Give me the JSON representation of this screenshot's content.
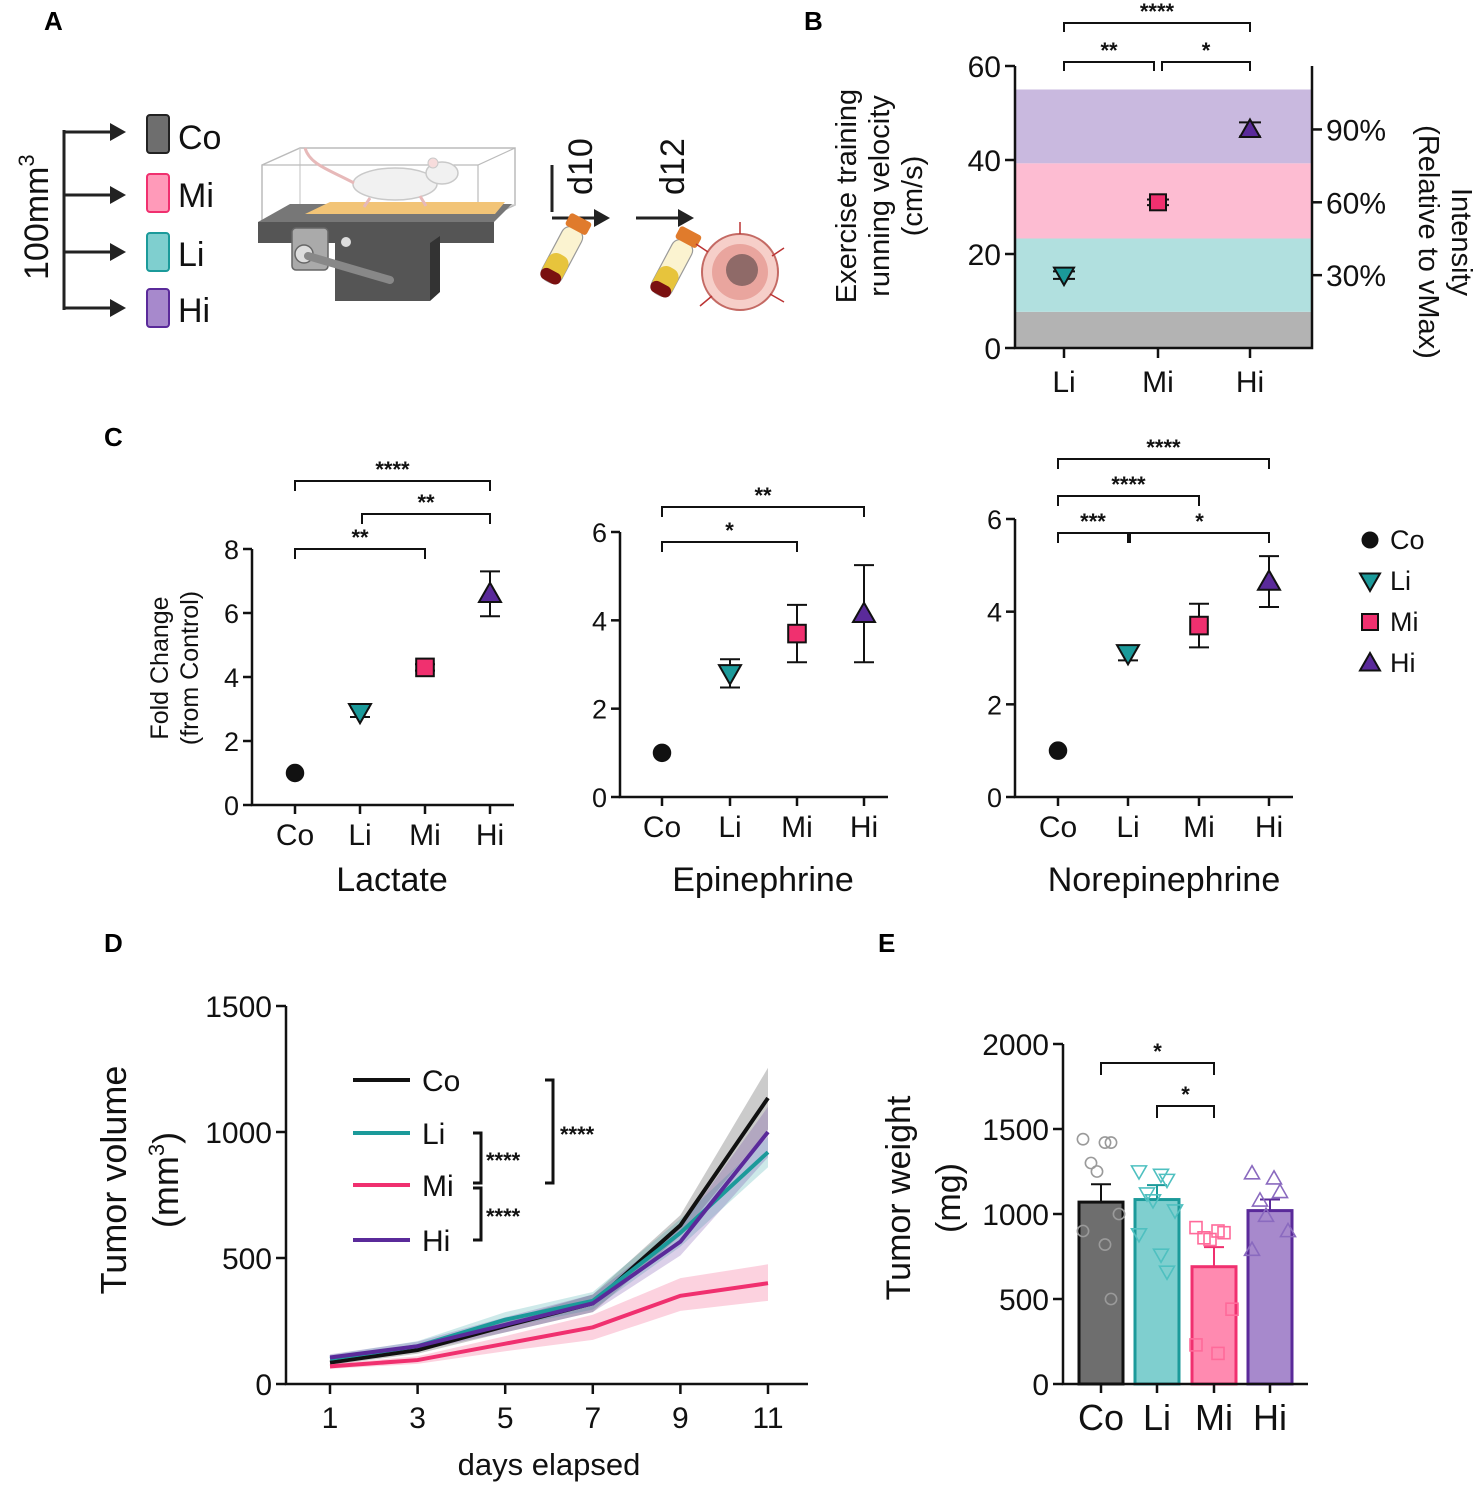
{
  "panels": {
    "A": "A",
    "B": "B",
    "C": "C",
    "D": "D",
    "E": "E"
  },
  "colors": {
    "Co": "#111111",
    "Li": "#1b9a9a",
    "Mi": "#f0306f",
    "Hi": "#5a2a9a",
    "CoBar": "#6e6e6e",
    "LiBar": "#7fcfcf",
    "MiBar": "#ff8ab0",
    "HiBar": "#a789cc"
  },
  "panel_a": {
    "tumor_size": "100mm",
    "tumor_size_sup": "3",
    "groups": [
      {
        "code": "Co",
        "color": "#6e6e6e"
      },
      {
        "code": "Mi",
        "color": "#ff9ab9"
      },
      {
        "code": "Li",
        "color": "#7fcfcf"
      },
      {
        "code": "Hi",
        "color": "#a789cc"
      }
    ],
    "day1": "d10",
    "day2": "d12"
  },
  "chart_data": [
    {
      "panel": "B",
      "type": "scatter",
      "ylabel_lines": [
        "Exercise training",
        "running velocity",
        "(cm/s)"
      ],
      "y2label_lines": [
        "Intensity",
        "(Relative to vMax)"
      ],
      "categories": [
        "Li",
        "Mi",
        "Hi"
      ],
      "yticks": [
        0,
        20,
        40,
        60
      ],
      "ylim": [
        0,
        60
      ],
      "y2ticks": [
        {
          "label": "30%",
          "value": 15.5
        },
        {
          "label": "60%",
          "value": 31
        },
        {
          "label": "90%",
          "value": 46.5
        }
      ],
      "bands": [
        {
          "from": 0,
          "to": 7.7,
          "color": "#b3b3b3"
        },
        {
          "from": 7.7,
          "to": 23.3,
          "color": "#b1e0df"
        },
        {
          "from": 23.3,
          "to": 39.3,
          "color": "#fdbcd2"
        },
        {
          "from": 39.3,
          "to": 55,
          "color": "#c9b9df"
        }
      ],
      "points": [
        {
          "group": "Li",
          "value": 15.5,
          "err": 0.8,
          "marker": "tri-down",
          "color": "#1b9a9a"
        },
        {
          "group": "Mi",
          "value": 31,
          "err": 0.6,
          "marker": "square",
          "color": "#f0306f"
        },
        {
          "group": "Hi",
          "value": 46.5,
          "err": 1.5,
          "marker": "tri-up",
          "color": "#5a2a9a"
        }
      ],
      "significance": [
        {
          "from": "Li",
          "to": "Hi",
          "label": "****"
        },
        {
          "from": "Li",
          "to": "Mi",
          "label": "**"
        },
        {
          "from": "Mi",
          "to": "Hi",
          "label": "*"
        }
      ]
    },
    {
      "panel": "C-Lactate",
      "type": "scatter",
      "title": "Lactate",
      "ylabel_lines": [
        "Fold Change",
        "(from Control)"
      ],
      "categories": [
        "Co",
        "Li",
        "Mi",
        "Hi"
      ],
      "yticks": [
        0,
        2,
        4,
        6,
        8
      ],
      "ylim": [
        0,
        8
      ],
      "points": [
        {
          "group": "Co",
          "value": 1,
          "err": 0,
          "marker": "circle",
          "color": "#111111"
        },
        {
          "group": "Li",
          "value": 2.9,
          "err": 0.15,
          "marker": "tri-down",
          "color": "#1b9a9a"
        },
        {
          "group": "Mi",
          "value": 4.3,
          "err": 0.1,
          "marker": "square",
          "color": "#f0306f"
        },
        {
          "group": "Hi",
          "value": 6.6,
          "err": 0.7,
          "marker": "tri-up",
          "color": "#5a2a9a"
        }
      ],
      "significance": [
        {
          "from": "Co",
          "to": "Hi",
          "label": "****"
        },
        {
          "from": "Li",
          "to": "Hi",
          "label": "**"
        },
        {
          "from": "Co",
          "to": "Mi",
          "label": "**"
        }
      ]
    },
    {
      "panel": "C-Epinephrine",
      "type": "scatter",
      "title": "Epinephrine",
      "categories": [
        "Co",
        "Li",
        "Mi",
        "Hi"
      ],
      "yticks": [
        0,
        2,
        4,
        6
      ],
      "ylim": [
        0,
        6
      ],
      "points": [
        {
          "group": "Co",
          "value": 1,
          "err": 0,
          "marker": "circle",
          "color": "#111111"
        },
        {
          "group": "Li",
          "value": 2.8,
          "err": 0.32,
          "marker": "tri-down",
          "color": "#1b9a9a"
        },
        {
          "group": "Mi",
          "value": 3.7,
          "err": 0.65,
          "marker": "square",
          "color": "#f0306f"
        },
        {
          "group": "Hi",
          "value": 4.15,
          "err": 1.1,
          "marker": "tri-up",
          "color": "#5a2a9a"
        }
      ],
      "significance": [
        {
          "from": "Co",
          "to": "Hi",
          "label": "**"
        },
        {
          "from": "Co",
          "to": "Mi",
          "label": "*"
        }
      ]
    },
    {
      "panel": "C-Norepinephrine",
      "type": "scatter",
      "title": "Norepinephrine",
      "categories": [
        "Co",
        "Li",
        "Mi",
        "Hi"
      ],
      "yticks": [
        0,
        2,
        4,
        6
      ],
      "ylim": [
        0,
        6
      ],
      "points": [
        {
          "group": "Co",
          "value": 1,
          "err": 0,
          "marker": "circle",
          "color": "#111111"
        },
        {
          "group": "Li",
          "value": 3.1,
          "err": 0.15,
          "marker": "tri-down",
          "color": "#1b9a9a"
        },
        {
          "group": "Mi",
          "value": 3.7,
          "err": 0.47,
          "marker": "square",
          "color": "#f0306f"
        },
        {
          "group": "Hi",
          "value": 4.65,
          "err": 0.55,
          "marker": "tri-up",
          "color": "#5a2a9a"
        }
      ],
      "significance": [
        {
          "from": "Co",
          "to": "Hi",
          "label": "****"
        },
        {
          "from": "Co",
          "to": "Mi",
          "label": "****"
        },
        {
          "from": "Co",
          "to": "Li",
          "label": "***"
        },
        {
          "from": "Li",
          "to": "Hi",
          "label": "*"
        }
      ],
      "legend": [
        {
          "label": "Co",
          "marker": "circle",
          "color": "#111111"
        },
        {
          "label": "Li",
          "marker": "tri-down",
          "color": "#1b9a9a"
        },
        {
          "label": "Mi",
          "marker": "square",
          "color": "#f0306f"
        },
        {
          "label": "Hi",
          "marker": "tri-up",
          "color": "#5a2a9a"
        }
      ]
    },
    {
      "panel": "D",
      "type": "line",
      "xlabel": "days elapsed",
      "ylabel": "Tumor volume",
      "ylabel2": "(mm",
      "ylabel2_sup": "3",
      "ylabel2_end": ")",
      "x": [
        1,
        3,
        5,
        7,
        9,
        11
      ],
      "xlim": [
        0,
        12
      ],
      "ylim": [
        0,
        1500
      ],
      "yticks": [
        0,
        500,
        1000,
        1500
      ],
      "series": [
        {
          "name": "Co",
          "color": "#111111",
          "values": [
            85,
            135,
            230,
            320,
            630,
            1135
          ],
          "lower": [
            75,
            120,
            205,
            285,
            590,
            1010
          ],
          "upper": [
            95,
            150,
            255,
            355,
            670,
            1255
          ]
        },
        {
          "name": "Li",
          "color": "#1b9a9a",
          "values": [
            100,
            150,
            255,
            330,
            600,
            920
          ],
          "lower": [
            85,
            130,
            225,
            295,
            545,
            860
          ],
          "upper": [
            115,
            170,
            285,
            365,
            655,
            980
          ]
        },
        {
          "name": "Mi",
          "color": "#f0306f",
          "values": [
            70,
            95,
            160,
            225,
            350,
            400
          ],
          "lower": [
            60,
            80,
            130,
            175,
            290,
            330
          ],
          "upper": [
            80,
            110,
            190,
            275,
            420,
            475
          ]
        },
        {
          "name": "Hi",
          "color": "#5a2a9a",
          "values": [
            105,
            150,
            235,
            320,
            565,
            1000
          ],
          "lower": [
            92,
            132,
            205,
            285,
            510,
            900
          ],
          "upper": [
            118,
            168,
            265,
            355,
            620,
            1100
          ]
        }
      ],
      "significance": [
        {
          "between": "Co vs Li,Mi,Hi",
          "label": "****"
        },
        {
          "between": "Li vs Mi",
          "label": "****"
        },
        {
          "between": "Mi vs Hi",
          "label": "****"
        }
      ]
    },
    {
      "panel": "E",
      "type": "bar",
      "ylabel": "Tumor weight",
      "ylabel2": "(mg)",
      "categories": [
        "Co",
        "Li",
        "Mi",
        "Hi"
      ],
      "ylim": [
        0,
        2000
      ],
      "yticks": [
        0,
        500,
        1000,
        1500,
        2000
      ],
      "values": [
        1070,
        1085,
        690,
        1020
      ],
      "errors": [
        105,
        85,
        115,
        65
      ],
      "points": [
        [
          1440,
          1420,
          1420,
          1300,
          1250,
          1000,
          900,
          820,
          500
        ],
        [
          1250,
          1230,
          1200,
          1120,
          1080,
          1020,
          880,
          760,
          660
        ],
        [
          920,
          900,
          890,
          860,
          850,
          440,
          230,
          180
        ],
        [
          1240,
          1210,
          1130,
          1080,
          990,
          900,
          790
        ]
      ],
      "significance": [
        {
          "from": "Co",
          "to": "Mi",
          "label": "*"
        },
        {
          "from": "Li",
          "to": "Mi",
          "label": "*"
        }
      ]
    }
  ]
}
